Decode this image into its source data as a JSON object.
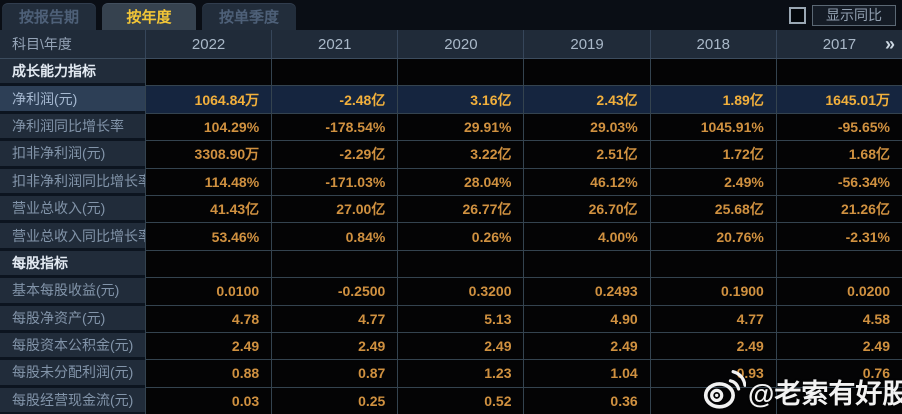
{
  "tabs": [
    {
      "label": "按报告期",
      "active": false
    },
    {
      "label": "按年度",
      "active": true
    },
    {
      "label": "按单季度",
      "active": false
    }
  ],
  "controls": {
    "show_yoy_label": "显示同比",
    "checkbox_checked": false
  },
  "table": {
    "corner_label": "科目\\年度",
    "years": [
      "2022",
      "2021",
      "2020",
      "2019",
      "2018",
      "2017"
    ],
    "more_years_glyph": "»",
    "rows": [
      {
        "type": "section",
        "label": "成长能力指标",
        "values": [
          "",
          "",
          "",
          "",
          "",
          ""
        ]
      },
      {
        "type": "highlight",
        "label": "净利润(元)",
        "values": [
          "1064.84万",
          "-2.48亿",
          "3.16亿",
          "2.43亿",
          "1.89亿",
          "1645.01万"
        ]
      },
      {
        "type": "data",
        "label": "净利润同比增长率",
        "values": [
          "104.29%",
          "-178.54%",
          "29.91%",
          "29.03%",
          "1045.91%",
          "-95.65%"
        ]
      },
      {
        "type": "data",
        "label": "扣非净利润(元)",
        "values": [
          "3308.90万",
          "-2.29亿",
          "3.22亿",
          "2.51亿",
          "1.72亿",
          "1.68亿"
        ]
      },
      {
        "type": "data",
        "label": "扣非净利润同比增长率",
        "values": [
          "114.48%",
          "-171.03%",
          "28.04%",
          "46.12%",
          "2.49%",
          "-56.34%"
        ]
      },
      {
        "type": "data",
        "label": "营业总收入(元)",
        "values": [
          "41.43亿",
          "27.00亿",
          "26.77亿",
          "26.70亿",
          "25.68亿",
          "21.26亿"
        ]
      },
      {
        "type": "data",
        "label": "营业总收入同比增长率",
        "values": [
          "53.46%",
          "0.84%",
          "0.26%",
          "4.00%",
          "20.76%",
          "-2.31%"
        ]
      },
      {
        "type": "section",
        "label": "每股指标",
        "values": [
          "",
          "",
          "",
          "",
          "",
          ""
        ]
      },
      {
        "type": "data",
        "label": "基本每股收益(元)",
        "values": [
          "0.0100",
          "-0.2500",
          "0.3200",
          "0.2493",
          "0.1900",
          "0.0200"
        ]
      },
      {
        "type": "data",
        "label": "每股净资产(元)",
        "values": [
          "4.78",
          "4.77",
          "5.13",
          "4.90",
          "4.77",
          "4.58"
        ]
      },
      {
        "type": "data",
        "label": "每股资本公积金(元)",
        "values": [
          "2.49",
          "2.49",
          "2.49",
          "2.49",
          "2.49",
          "2.49"
        ]
      },
      {
        "type": "data",
        "label": "每股未分配利润(元)",
        "values": [
          "0.88",
          "0.87",
          "1.23",
          "1.04",
          "0.93",
          "0.76"
        ]
      },
      {
        "type": "data",
        "label": "每股经营现金流(元)",
        "values": [
          "0.03",
          "0.25",
          "0.52",
          "0.36",
          "",
          ""
        ]
      }
    ]
  },
  "watermark": {
    "text": "@老索有好股",
    "icon": "weibo-icon"
  },
  "colors": {
    "accent_gold": "#f3c637",
    "value_orange": "#d09140",
    "highlight_value_gold": "#f2b03c",
    "highlight_row_bg": "#15253f",
    "label_col_bg": "#212c3a",
    "data_cell_bg": "#040405",
    "header_bg": "#202b39"
  }
}
